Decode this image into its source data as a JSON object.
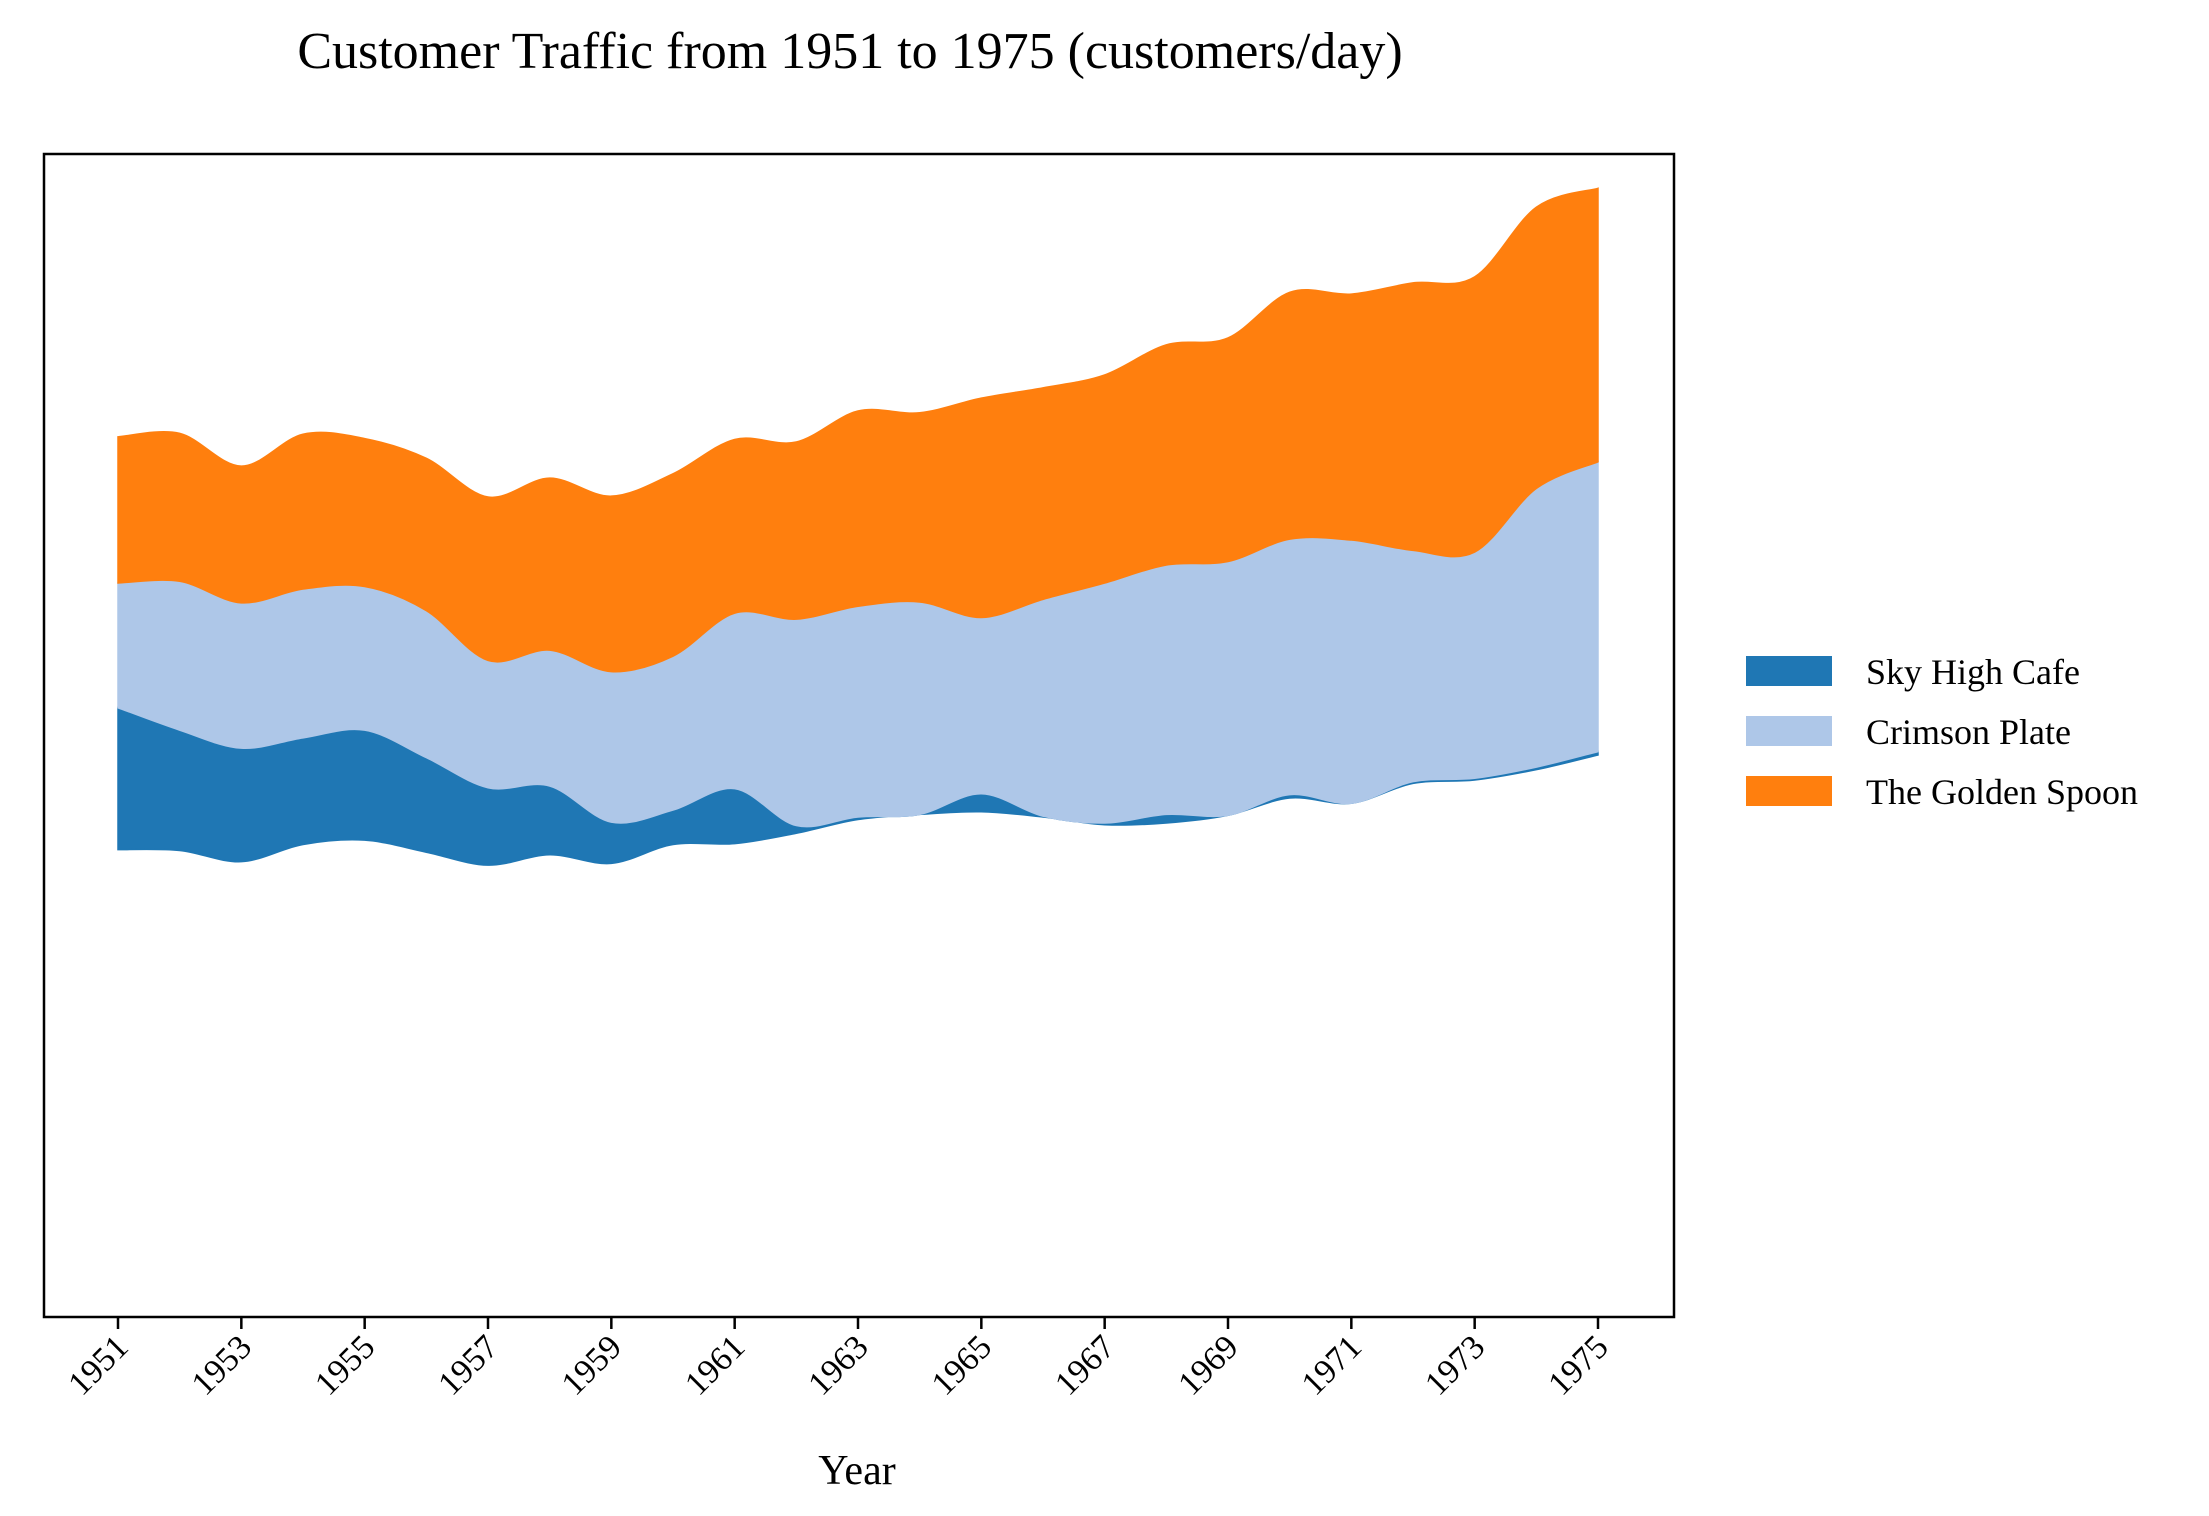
{
  "chart_data": {
    "type": "area",
    "subtype": "streamgraph",
    "title": "Customer Traffic from 1951 to 1975 (customers/day)",
    "xlabel": "Year",
    "ylabel": "",
    "x": [
      1951,
      1952,
      1953,
      1954,
      1955,
      1956,
      1957,
      1958,
      1959,
      1960,
      1961,
      1962,
      1963,
      1964,
      1965,
      1966,
      1967,
      1968,
      1969,
      1970,
      1971,
      1972,
      1973,
      1974,
      1975
    ],
    "x_ticks": [
      "1951",
      "1953",
      "1955",
      "1957",
      "1959",
      "1961",
      "1963",
      "1965",
      "1967",
      "1969",
      "1971",
      "1973",
      "1975"
    ],
    "baseline": [
      -174,
      -175,
      -188,
      -168,
      -163,
      -177,
      -192,
      -180,
      -190,
      -168,
      -167,
      -155,
      -139,
      -133,
      -130,
      -136,
      -145,
      -143,
      -134,
      -114,
      -120,
      -97,
      -93,
      -81,
      -64
    ],
    "series": [
      {
        "name": "Sky High Cafe",
        "color": "#1f77b4",
        "values": [
          165,
          140,
          132,
          124,
          128,
          110,
          90,
          80,
          48,
          40,
          64,
          9,
          3,
          0,
          21,
          1,
          2,
          10,
          0,
          4,
          0,
          2,
          2,
          3,
          4
        ]
      },
      {
        "name": "Crimson Plate",
        "color": "#aec7e8",
        "values": [
          145,
          173,
          169,
          173,
          167,
          171,
          148,
          158,
          175,
          179,
          204,
          240,
          245,
          247,
          205,
          252,
          279,
          290,
          295,
          297,
          306,
          269,
          263,
          324,
          337
        ]
      },
      {
        "name": "The Golden Spoon",
        "color": "#ff7f0e",
        "values": [
          170,
          172,
          159,
          180,
          172,
          177,
          190,
          200,
          204,
          212,
          202,
          206,
          227,
          220,
          255,
          246,
          242,
          256,
          260,
          287,
          286,
          311,
          320,
          327,
          318
        ]
      }
    ],
    "legend_position": "right",
    "grid": false
  }
}
